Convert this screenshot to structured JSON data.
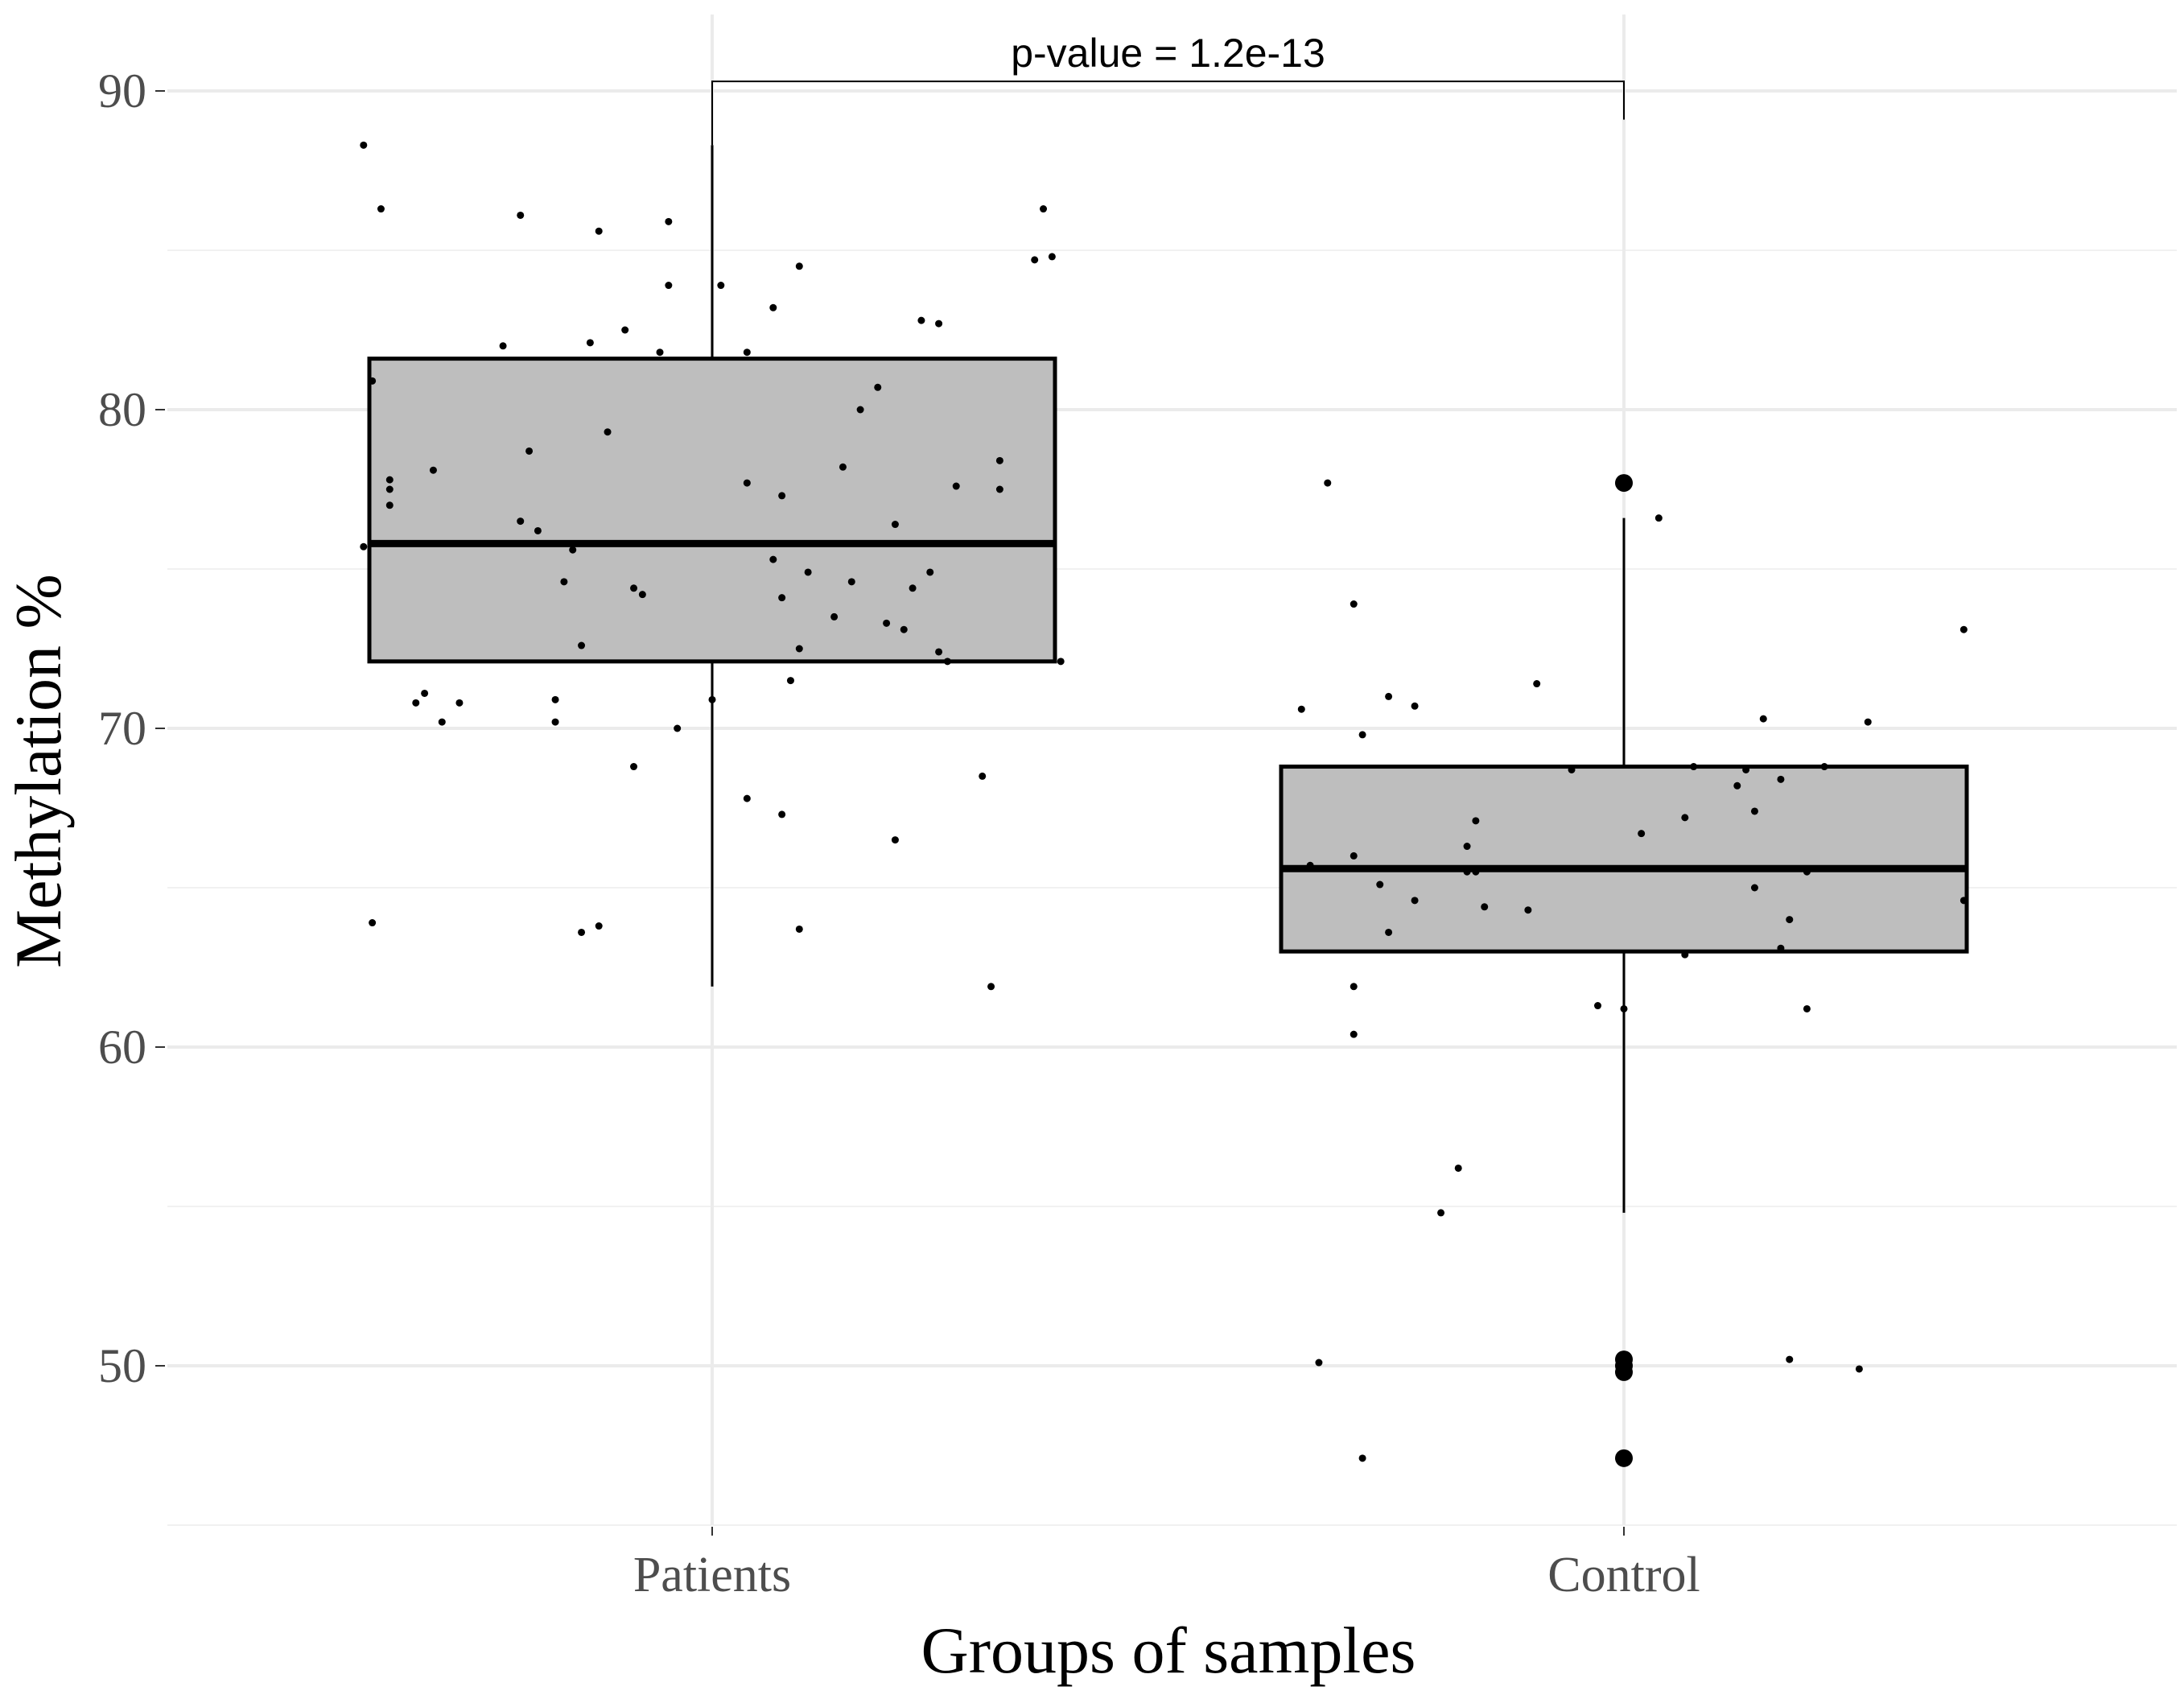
{
  "chart_data": {
    "type": "box",
    "xlabel": "Groups of samples",
    "ylabel": "Methylation %",
    "categories": [
      "Patients",
      "Control"
    ],
    "ylim": [
      45,
      91.5
    ],
    "yticks": [
      50,
      60,
      70,
      80,
      90
    ],
    "ytick_labels": [
      "50",
      "60",
      "70",
      "80",
      "90"
    ],
    "grid": true,
    "annotation": {
      "text": "p-value = 1.2e-13",
      "bracket_y": 90.3,
      "left_drop_to": 88.3,
      "right_drop_to": 89.1
    },
    "boxes": [
      {
        "category": "Patients",
        "q1": 72.1,
        "median": 75.8,
        "q3": 81.6,
        "whisker_low": 61.9,
        "whisker_high": 88.3,
        "outliers": []
      },
      {
        "category": "Control",
        "q1": 63.0,
        "median": 65.6,
        "q3": 68.8,
        "whisker_low": 54.8,
        "whisker_high": 76.6,
        "outliers": [
          77.7,
          50.2,
          50.0,
          49.8,
          47.1
        ]
      }
    ],
    "jitter_points": [
      {
        "category": "Patients",
        "dx": -0.4,
        "y": 88.3
      },
      {
        "category": "Patients",
        "dx": -0.38,
        "y": 86.3
      },
      {
        "category": "Patients",
        "dx": -0.22,
        "y": 86.1
      },
      {
        "category": "Patients",
        "dx": -0.13,
        "y": 85.6
      },
      {
        "category": "Patients",
        "dx": -0.05,
        "y": 85.9
      },
      {
        "category": "Patients",
        "dx": -0.05,
        "y": 83.9
      },
      {
        "category": "Patients",
        "dx": 0.01,
        "y": 83.9
      },
      {
        "category": "Patients",
        "dx": 0.1,
        "y": 84.5
      },
      {
        "category": "Patients",
        "dx": 0.07,
        "y": 83.2
      },
      {
        "category": "Patients",
        "dx": 0.38,
        "y": 86.3
      },
      {
        "category": "Patients",
        "dx": 0.37,
        "y": 84.7
      },
      {
        "category": "Patients",
        "dx": 0.39,
        "y": 84.8
      },
      {
        "category": "Patients",
        "dx": 0.24,
        "y": 82.8
      },
      {
        "category": "Patients",
        "dx": 0.26,
        "y": 82.7
      },
      {
        "category": "Patients",
        "dx": -0.24,
        "y": 82.0
      },
      {
        "category": "Patients",
        "dx": -0.14,
        "y": 82.1
      },
      {
        "category": "Patients",
        "dx": -0.1,
        "y": 82.5
      },
      {
        "category": "Patients",
        "dx": -0.06,
        "y": 81.8
      },
      {
        "category": "Patients",
        "dx": 0.04,
        "y": 81.8
      },
      {
        "category": "Patients",
        "dx": -0.39,
        "y": 80.9
      },
      {
        "category": "Patients",
        "dx": 0.19,
        "y": 80.7
      },
      {
        "category": "Patients",
        "dx": 0.17,
        "y": 80.0
      },
      {
        "category": "Patients",
        "dx": -0.12,
        "y": 79.3
      },
      {
        "category": "Patients",
        "dx": -0.21,
        "y": 78.7
      },
      {
        "category": "Patients",
        "dx": 0.33,
        "y": 78.4
      },
      {
        "category": "Patients",
        "dx": -0.32,
        "y": 78.1
      },
      {
        "category": "Patients",
        "dx": 0.15,
        "y": 78.2
      },
      {
        "category": "Patients",
        "dx": -0.37,
        "y": 77.8
      },
      {
        "category": "Patients",
        "dx": -0.37,
        "y": 77.5
      },
      {
        "category": "Patients",
        "dx": 0.04,
        "y": 77.7
      },
      {
        "category": "Patients",
        "dx": 0.28,
        "y": 77.6
      },
      {
        "category": "Patients",
        "dx": 0.33,
        "y": 77.5
      },
      {
        "category": "Patients",
        "dx": 0.08,
        "y": 77.3
      },
      {
        "category": "Patients",
        "dx": -0.37,
        "y": 77.0
      },
      {
        "category": "Patients",
        "dx": -0.22,
        "y": 76.5
      },
      {
        "category": "Patients",
        "dx": -0.2,
        "y": 76.2
      },
      {
        "category": "Patients",
        "dx": 0.21,
        "y": 76.4
      },
      {
        "category": "Patients",
        "dx": -0.4,
        "y": 75.7
      },
      {
        "category": "Patients",
        "dx": -0.16,
        "y": 75.6
      },
      {
        "category": "Patients",
        "dx": 0.07,
        "y": 75.3
      },
      {
        "category": "Patients",
        "dx": 0.11,
        "y": 74.9
      },
      {
        "category": "Patients",
        "dx": 0.16,
        "y": 74.6
      },
      {
        "category": "Patients",
        "dx": 0.25,
        "y": 74.9
      },
      {
        "category": "Patients",
        "dx": -0.17,
        "y": 74.6
      },
      {
        "category": "Patients",
        "dx": -0.09,
        "y": 74.4
      },
      {
        "category": "Patients",
        "dx": -0.08,
        "y": 74.2
      },
      {
        "category": "Patients",
        "dx": 0.08,
        "y": 74.1
      },
      {
        "category": "Patients",
        "dx": 0.23,
        "y": 74.4
      },
      {
        "category": "Patients",
        "dx": 0.14,
        "y": 73.5
      },
      {
        "category": "Patients",
        "dx": 0.2,
        "y": 73.3
      },
      {
        "category": "Patients",
        "dx": 0.22,
        "y": 73.1
      },
      {
        "category": "Patients",
        "dx": -0.15,
        "y": 72.6
      },
      {
        "category": "Patients",
        "dx": 0.1,
        "y": 72.5
      },
      {
        "category": "Patients",
        "dx": 0.26,
        "y": 72.4
      },
      {
        "category": "Patients",
        "dx": 0.27,
        "y": 72.1
      },
      {
        "category": "Patients",
        "dx": 0.4,
        "y": 72.1
      },
      {
        "category": "Patients",
        "dx": 0.09,
        "y": 71.5
      },
      {
        "category": "Patients",
        "dx": -0.33,
        "y": 71.1
      },
      {
        "category": "Patients",
        "dx": -0.34,
        "y": 70.8
      },
      {
        "category": "Patients",
        "dx": -0.29,
        "y": 70.8
      },
      {
        "category": "Patients",
        "dx": -0.18,
        "y": 70.9
      },
      {
        "category": "Patients",
        "dx": 0.0,
        "y": 70.9
      },
      {
        "category": "Patients",
        "dx": -0.31,
        "y": 70.2
      },
      {
        "category": "Patients",
        "dx": -0.18,
        "y": 70.2
      },
      {
        "category": "Patients",
        "dx": -0.04,
        "y": 70.0
      },
      {
        "category": "Patients",
        "dx": -0.09,
        "y": 68.8
      },
      {
        "category": "Patients",
        "dx": 0.31,
        "y": 68.5
      },
      {
        "category": "Patients",
        "dx": 0.04,
        "y": 67.8
      },
      {
        "category": "Patients",
        "dx": 0.08,
        "y": 67.3
      },
      {
        "category": "Patients",
        "dx": 0.21,
        "y": 66.5
      },
      {
        "category": "Patients",
        "dx": -0.39,
        "y": 63.9
      },
      {
        "category": "Patients",
        "dx": -0.15,
        "y": 63.6
      },
      {
        "category": "Patients",
        "dx": -0.13,
        "y": 63.8
      },
      {
        "category": "Patients",
        "dx": 0.1,
        "y": 63.7
      },
      {
        "category": "Patients",
        "dx": 0.32,
        "y": 61.9
      },
      {
        "category": "Control",
        "dx": -0.34,
        "y": 77.7
      },
      {
        "category": "Control",
        "dx": 0.04,
        "y": 76.6
      },
      {
        "category": "Control",
        "dx": -0.31,
        "y": 73.9
      },
      {
        "category": "Control",
        "dx": 0.39,
        "y": 73.1
      },
      {
        "category": "Control",
        "dx": -0.1,
        "y": 71.4
      },
      {
        "category": "Control",
        "dx": -0.27,
        "y": 71.0
      },
      {
        "category": "Control",
        "dx": -0.24,
        "y": 70.7
      },
      {
        "category": "Control",
        "dx": -0.37,
        "y": 70.6
      },
      {
        "category": "Control",
        "dx": 0.16,
        "y": 70.3
      },
      {
        "category": "Control",
        "dx": 0.28,
        "y": 70.2
      },
      {
        "category": "Control",
        "dx": -0.3,
        "y": 69.8
      },
      {
        "category": "Control",
        "dx": 0.08,
        "y": 68.8
      },
      {
        "category": "Control",
        "dx": 0.14,
        "y": 68.7
      },
      {
        "category": "Control",
        "dx": 0.23,
        "y": 68.8
      },
      {
        "category": "Control",
        "dx": 0.18,
        "y": 68.4
      },
      {
        "category": "Control",
        "dx": 0.13,
        "y": 68.2
      },
      {
        "category": "Control",
        "dx": -0.06,
        "y": 68.7
      },
      {
        "category": "Control",
        "dx": 0.15,
        "y": 67.4
      },
      {
        "category": "Control",
        "dx": 0.07,
        "y": 67.2
      },
      {
        "category": "Control",
        "dx": -0.17,
        "y": 67.1
      },
      {
        "category": "Control",
        "dx": 0.02,
        "y": 66.7
      },
      {
        "category": "Control",
        "dx": -0.18,
        "y": 66.3
      },
      {
        "category": "Control",
        "dx": -0.31,
        "y": 66.0
      },
      {
        "category": "Control",
        "dx": -0.36,
        "y": 65.7
      },
      {
        "category": "Control",
        "dx": -0.18,
        "y": 65.5
      },
      {
        "category": "Control",
        "dx": -0.17,
        "y": 65.5
      },
      {
        "category": "Control",
        "dx": 0.21,
        "y": 65.5
      },
      {
        "category": "Control",
        "dx": -0.28,
        "y": 65.1
      },
      {
        "category": "Control",
        "dx": 0.15,
        "y": 65.0
      },
      {
        "category": "Control",
        "dx": -0.24,
        "y": 64.6
      },
      {
        "category": "Control",
        "dx": -0.16,
        "y": 64.4
      },
      {
        "category": "Control",
        "dx": -0.11,
        "y": 64.3
      },
      {
        "category": "Control",
        "dx": 0.19,
        "y": 64.0
      },
      {
        "category": "Control",
        "dx": 0.39,
        "y": 64.6
      },
      {
        "category": "Control",
        "dx": -0.27,
        "y": 63.6
      },
      {
        "category": "Control",
        "dx": 0.07,
        "y": 62.9
      },
      {
        "category": "Control",
        "dx": 0.18,
        "y": 63.1
      },
      {
        "category": "Control",
        "dx": -0.31,
        "y": 61.9
      },
      {
        "category": "Control",
        "dx": -0.03,
        "y": 61.3
      },
      {
        "category": "Control",
        "dx": 0.0,
        "y": 61.2
      },
      {
        "category": "Control",
        "dx": 0.21,
        "y": 61.2
      },
      {
        "category": "Control",
        "dx": -0.31,
        "y": 60.4
      },
      {
        "category": "Control",
        "dx": -0.19,
        "y": 56.2
      },
      {
        "category": "Control",
        "dx": -0.21,
        "y": 54.8
      },
      {
        "category": "Control",
        "dx": -0.35,
        "y": 50.1
      },
      {
        "category": "Control",
        "dx": 0.19,
        "y": 50.2
      },
      {
        "category": "Control",
        "dx": 0.27,
        "y": 49.9
      },
      {
        "category": "Control",
        "dx": -0.3,
        "y": 47.1
      }
    ]
  }
}
